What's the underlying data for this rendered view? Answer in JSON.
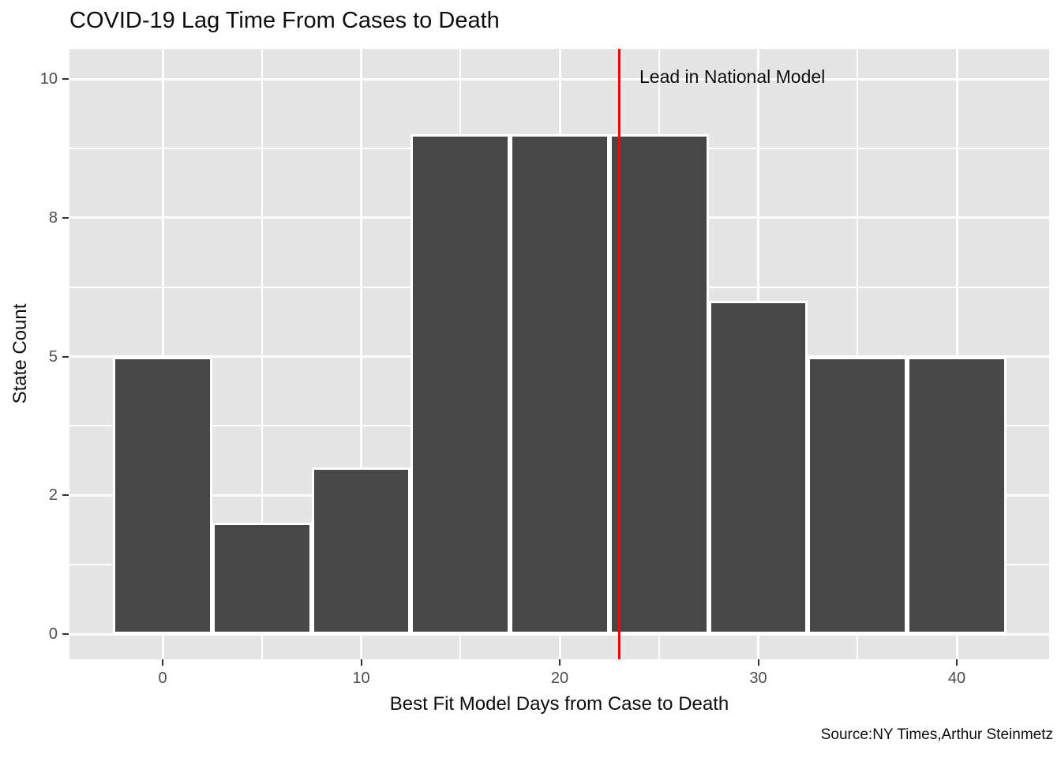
{
  "chart": {
    "colors": {
      "bar_fill": "#474747",
      "bar_outline": "#ffffff",
      "panel_background": "#e5e5e5",
      "gridline": "#ffffff",
      "vline": "#ff0000",
      "tick_label": "#4d4d4d",
      "text": "#0d0d0d"
    }
  },
  "chart_data": {
    "type": "bar",
    "title": "COVID-19 Lag Time From Cases to Death",
    "xlabel": "Best Fit Model Days from Case to Death",
    "ylabel": "State Count",
    "caption": "Source:NY Times,Arthur Steinmetz",
    "annotation": "Lead in National Model",
    "categories": [
      0,
      5,
      10,
      15,
      20,
      25,
      30,
      35,
      40
    ],
    "values": [
      5,
      2,
      3,
      9,
      9,
      9,
      6,
      5,
      5
    ],
    "bin_width": 5,
    "x_ticks": [
      0,
      10,
      20,
      30,
      40
    ],
    "x_minor_ticks": [
      5,
      15,
      25,
      35
    ],
    "y_ticks": [
      0,
      2,
      5,
      8,
      10
    ],
    "xlim": [
      -4.5,
      44.5
    ],
    "ylim": [
      0,
      10
    ],
    "vline_x": 23,
    "grid": "on",
    "legend": "none"
  }
}
